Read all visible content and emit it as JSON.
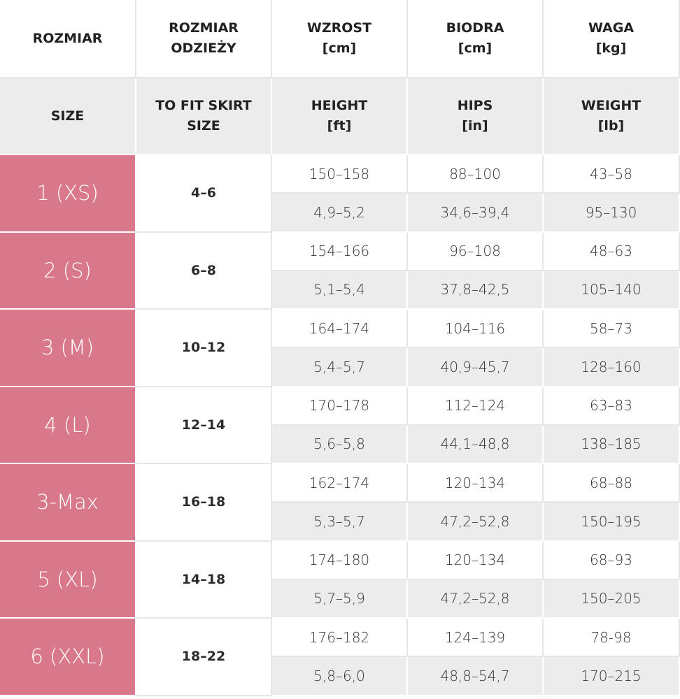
{
  "header": {
    "row1": [
      [
        "ROZMIAR"
      ],
      [
        "ROZMIAR",
        "ODZIEŻY"
      ],
      [
        "WZROST",
        "[cm]"
      ],
      [
        "BIODRA",
        "[cm]"
      ],
      [
        "WAGA",
        "[kg]"
      ]
    ],
    "row2": [
      [
        "SIZE"
      ],
      [
        "TO FIT SKIRT",
        "SIZE"
      ],
      [
        "HEIGHT",
        "[ft]"
      ],
      [
        "HIPS",
        "[in]"
      ],
      [
        "WEIGHT",
        "[lb]"
      ]
    ]
  },
  "table": {
    "rows": [
      {
        "size": "1 (XS)",
        "skirt": "4–6",
        "metric": [
          "150–158",
          "88–100",
          "43–58"
        ],
        "imperial": [
          "4,9–5,2",
          "34,6–39,4",
          "95–130"
        ]
      },
      {
        "size": "2 (S)",
        "skirt": "6–8",
        "metric": [
          "154–166",
          "96–108",
          "48–63"
        ],
        "imperial": [
          "5,1–5,4",
          "37,8–42,5",
          "105–140"
        ]
      },
      {
        "size": "3 (M)",
        "skirt": "10–12",
        "metric": [
          "164–174",
          "104–116",
          "58–73"
        ],
        "imperial": [
          "5,4–5,7",
          "40,9–45,7",
          "128–160"
        ]
      },
      {
        "size": "4 (L)",
        "skirt": "12–14",
        "metric": [
          "170–178",
          "112–124",
          "63–83"
        ],
        "imperial": [
          "5,6–5,8",
          "44,1–48,8",
          "138–185"
        ]
      },
      {
        "size": "3-Max",
        "skirt": "16–18",
        "metric": [
          "162–174",
          "120–134",
          "68–88"
        ],
        "imperial": [
          "5,3–5,7",
          "47,2–52,8",
          "150–195"
        ]
      },
      {
        "size": "5 (XL)",
        "skirt": "14–18",
        "metric": [
          "174–180",
          "120–134",
          "68–93"
        ],
        "imperial": [
          "5,7–5,9",
          "47,2–52,8",
          "150–205"
        ]
      },
      {
        "size": "6 (XXL)",
        "skirt": "18–22",
        "metric": [
          "176–182",
          "124–139",
          "78-98"
        ],
        "imperial": [
          "5,8–6,0",
          "48,8–54,7",
          "170–215"
        ]
      }
    ]
  }
}
